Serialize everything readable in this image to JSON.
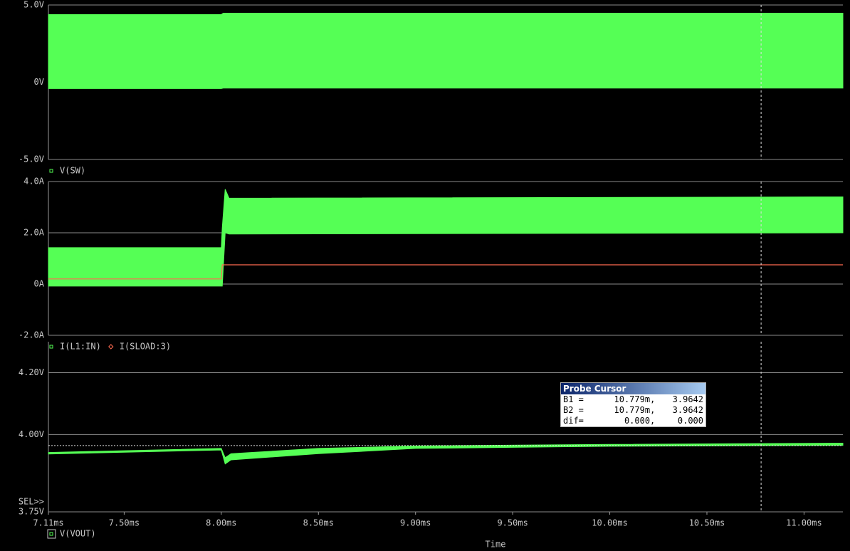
{
  "chart_data": [
    {
      "type": "line",
      "ylim": [
        -5,
        5
      ],
      "xlim": [
        7.11,
        11.2
      ],
      "yticks": [
        {
          "value": 5,
          "label": "5.0V"
        },
        {
          "value": 0,
          "label": "0V"
        },
        {
          "value": -5,
          "label": "-5.0V"
        }
      ],
      "grid": true,
      "series": [
        {
          "name": "V(SW)",
          "color": "#55ff55",
          "style": "band",
          "x": [
            7.11,
            8.0,
            8.01,
            11.2
          ],
          "values": [
            4.38,
            4.38,
            4.47,
            4.47
          ],
          "lower": [
            -0.41,
            -0.41,
            -0.38,
            -0.38
          ]
        }
      ]
    },
    {
      "type": "line",
      "ylim": [
        -2,
        4
      ],
      "xlim": [
        7.11,
        11.2
      ],
      "yticks": [
        {
          "value": 4,
          "label": "4.0A"
        },
        {
          "value": 2,
          "label": "2.0A"
        },
        {
          "value": 0,
          "label": "0A"
        },
        {
          "value": -2,
          "label": "-2.0A"
        }
      ],
      "grid": true,
      "series": [
        {
          "name": "I(L1:IN)",
          "color": "#55ff55",
          "style": "band",
          "x": [
            7.11,
            8.0,
            8.005,
            8.02,
            8.04,
            11.2
          ],
          "values": [
            1.42,
            1.42,
            2.2,
            3.7,
            3.35,
            3.4
          ],
          "lower": [
            -0.08,
            -0.08,
            -0.08,
            2.0,
            1.95,
            2.0
          ]
        },
        {
          "name": "I(SLOAD:3)",
          "color": "#ff6a50",
          "style": "line",
          "x": [
            7.11,
            8.0,
            8.005,
            11.2
          ],
          "values": [
            0.2,
            0.2,
            0.75,
            0.75
          ]
        }
      ]
    },
    {
      "type": "line",
      "ylim": [
        3.75,
        4.3
      ],
      "xlim": [
        7.11,
        11.2
      ],
      "yticks": [
        {
          "value": 4.2,
          "label": "4.20V"
        },
        {
          "value": 4.0,
          "label": "4.00V"
        },
        {
          "value": 3.75,
          "label": "3.75V"
        }
      ],
      "xticks": [
        {
          "value": 7.11,
          "label": "7.11ms"
        },
        {
          "value": 7.5,
          "label": "7.50ms"
        },
        {
          "value": 8.0,
          "label": "8.00ms"
        },
        {
          "value": 8.5,
          "label": "8.50ms"
        },
        {
          "value": 9.0,
          "label": "9.00ms"
        },
        {
          "value": 9.5,
          "label": "9.50ms"
        },
        {
          "value": 10.0,
          "label": "10.00ms"
        },
        {
          "value": 10.5,
          "label": "10.50ms"
        },
        {
          "value": 11.0,
          "label": "11.00ms"
        }
      ],
      "xlabel": "Time",
      "sel_label": "SEL>>",
      "grid": true,
      "series": [
        {
          "name": "V(VOUT)",
          "color": "#55ff55",
          "style": "band",
          "x": [
            7.11,
            8.0,
            8.02,
            8.05,
            8.5,
            9.0,
            10.0,
            11.2
          ],
          "values": [
            3.942,
            3.955,
            3.925,
            3.938,
            3.955,
            3.963,
            3.968,
            3.972
          ],
          "lower": [
            3.937,
            3.95,
            3.905,
            3.918,
            3.938,
            3.955,
            3.962,
            3.965
          ]
        }
      ]
    }
  ],
  "probe_cursor": {
    "title": "Probe Cursor",
    "x": 10.779,
    "y": 3.9642,
    "rows": [
      [
        "B1 =",
        "10.779m,",
        "3.9642"
      ],
      [
        "B2 =",
        "10.779m,",
        "3.9642"
      ],
      [
        "dif=",
        "0.000,",
        "0.000"
      ]
    ]
  }
}
